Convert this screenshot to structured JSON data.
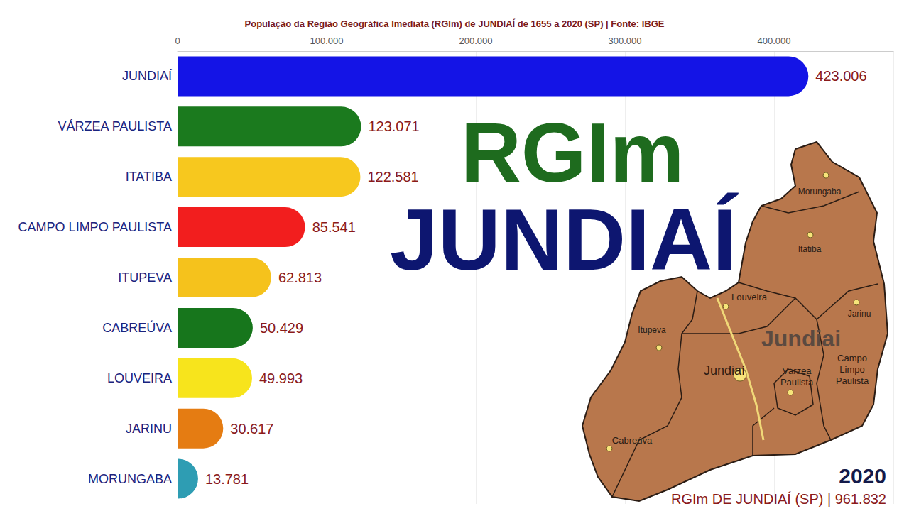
{
  "chart_data": {
    "type": "bar",
    "orientation": "horizontal",
    "title": "População da Região Geográfica Imediata (RGIm) de JUNDIAÍ de 1655 a 2020 (SP) | Fonte: IBGE",
    "categories": [
      "JUNDIAÍ",
      "VÁRZEA PAULISTA",
      "ITATIBA",
      "CAMPO LIMPO PAULISTA",
      "ITUPEVA",
      "CABREÚVA",
      "LOUVEIRA",
      "JARINU",
      "MORUNGABA"
    ],
    "values": [
      423006,
      123071,
      122581,
      85541,
      62813,
      50429,
      49993,
      30617,
      13781
    ],
    "value_labels": [
      "423.006",
      "123.071",
      "122.581",
      "85.541",
      "62.813",
      "50.429",
      "49.993",
      "30.617",
      "13.781"
    ],
    "colors": [
      "#1414e6",
      "#1b7a1e",
      "#f7c81e",
      "#f21e1e",
      "#f5c21c",
      "#17761c",
      "#f7e41c",
      "#e57c12",
      "#2e9db3"
    ],
    "xlim": [
      0,
      480000
    ],
    "xticks": [
      0,
      {
        "value": 100000,
        "label": "100.000"
      },
      {
        "value": 200000,
        "label": "200.000"
      },
      {
        "value": 300000,
        "label": "300.000"
      },
      {
        "value": 400000,
        "label": "400.000"
      }
    ],
    "grid": true,
    "data_labels": true
  },
  "overlay": {
    "heading": [
      "RGIm",
      "JUNDIAÍ"
    ],
    "year": "2020",
    "total_label": "RGIm DE JUNDIAÍ (SP) | 961.832"
  },
  "map": {
    "labels": [
      "Morungaba",
      "Itatiba",
      "Louveira",
      "Jarinu",
      "Itupeva",
      "Jundiai",
      "Jundiaí",
      "Várzea Paulista",
      "Campo Limpo Paulista",
      "Cabreúva"
    ]
  }
}
